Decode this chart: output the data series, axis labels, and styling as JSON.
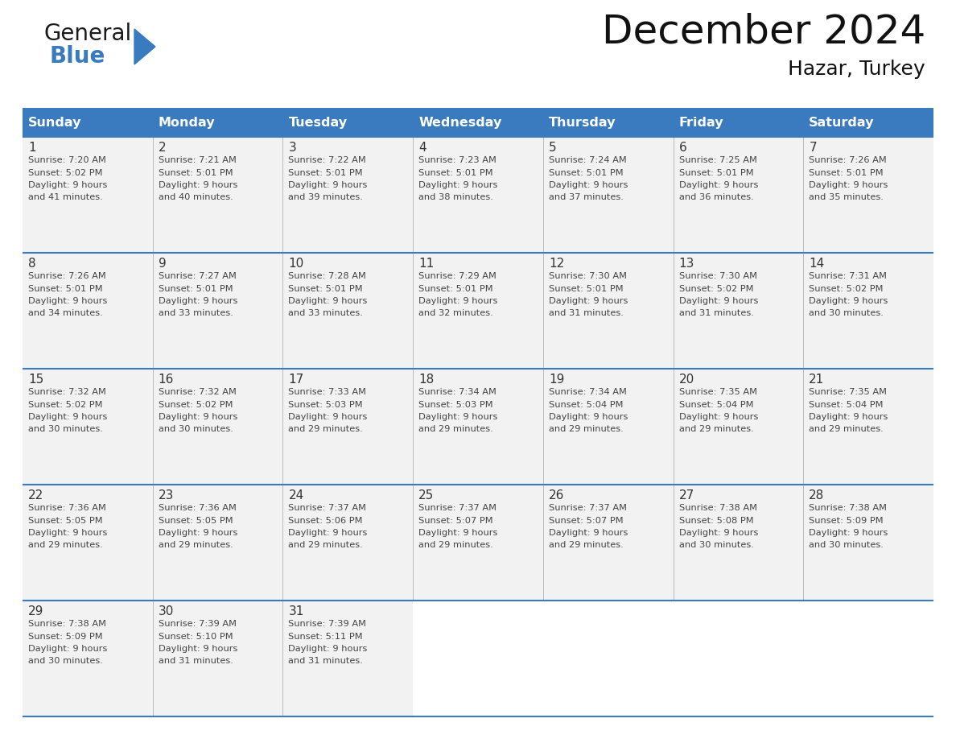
{
  "title": "December 2024",
  "subtitle": "Hazar, Turkey",
  "header_color": "#3a7abf",
  "header_text_color": "#ffffff",
  "background_color": "#ffffff",
  "cell_bg_odd": "#f2f2f2",
  "cell_bg_even": "#f2f2f2",
  "days_of_week": [
    "Sunday",
    "Monday",
    "Tuesday",
    "Wednesday",
    "Thursday",
    "Friday",
    "Saturday"
  ],
  "weeks": [
    [
      {
        "day": 1,
        "sunrise": "7:20 AM",
        "sunset": "5:02 PM",
        "daylight": "9 hours and 41 minutes."
      },
      {
        "day": 2,
        "sunrise": "7:21 AM",
        "sunset": "5:01 PM",
        "daylight": "9 hours and 40 minutes."
      },
      {
        "day": 3,
        "sunrise": "7:22 AM",
        "sunset": "5:01 PM",
        "daylight": "9 hours and 39 minutes."
      },
      {
        "day": 4,
        "sunrise": "7:23 AM",
        "sunset": "5:01 PM",
        "daylight": "9 hours and 38 minutes."
      },
      {
        "day": 5,
        "sunrise": "7:24 AM",
        "sunset": "5:01 PM",
        "daylight": "9 hours and 37 minutes."
      },
      {
        "day": 6,
        "sunrise": "7:25 AM",
        "sunset": "5:01 PM",
        "daylight": "9 hours and 36 minutes."
      },
      {
        "day": 7,
        "sunrise": "7:26 AM",
        "sunset": "5:01 PM",
        "daylight": "9 hours and 35 minutes."
      }
    ],
    [
      {
        "day": 8,
        "sunrise": "7:26 AM",
        "sunset": "5:01 PM",
        "daylight": "9 hours and 34 minutes."
      },
      {
        "day": 9,
        "sunrise": "7:27 AM",
        "sunset": "5:01 PM",
        "daylight": "9 hours and 33 minutes."
      },
      {
        "day": 10,
        "sunrise": "7:28 AM",
        "sunset": "5:01 PM",
        "daylight": "9 hours and 33 minutes."
      },
      {
        "day": 11,
        "sunrise": "7:29 AM",
        "sunset": "5:01 PM",
        "daylight": "9 hours and 32 minutes."
      },
      {
        "day": 12,
        "sunrise": "7:30 AM",
        "sunset": "5:01 PM",
        "daylight": "9 hours and 31 minutes."
      },
      {
        "day": 13,
        "sunrise": "7:30 AM",
        "sunset": "5:02 PM",
        "daylight": "9 hours and 31 minutes."
      },
      {
        "day": 14,
        "sunrise": "7:31 AM",
        "sunset": "5:02 PM",
        "daylight": "9 hours and 30 minutes."
      }
    ],
    [
      {
        "day": 15,
        "sunrise": "7:32 AM",
        "sunset": "5:02 PM",
        "daylight": "9 hours and 30 minutes."
      },
      {
        "day": 16,
        "sunrise": "7:32 AM",
        "sunset": "5:02 PM",
        "daylight": "9 hours and 30 minutes."
      },
      {
        "day": 17,
        "sunrise": "7:33 AM",
        "sunset": "5:03 PM",
        "daylight": "9 hours and 29 minutes."
      },
      {
        "day": 18,
        "sunrise": "7:34 AM",
        "sunset": "5:03 PM",
        "daylight": "9 hours and 29 minutes."
      },
      {
        "day": 19,
        "sunrise": "7:34 AM",
        "sunset": "5:04 PM",
        "daylight": "9 hours and 29 minutes."
      },
      {
        "day": 20,
        "sunrise": "7:35 AM",
        "sunset": "5:04 PM",
        "daylight": "9 hours and 29 minutes."
      },
      {
        "day": 21,
        "sunrise": "7:35 AM",
        "sunset": "5:04 PM",
        "daylight": "9 hours and 29 minutes."
      }
    ],
    [
      {
        "day": 22,
        "sunrise": "7:36 AM",
        "sunset": "5:05 PM",
        "daylight": "9 hours and 29 minutes."
      },
      {
        "day": 23,
        "sunrise": "7:36 AM",
        "sunset": "5:05 PM",
        "daylight": "9 hours and 29 minutes."
      },
      {
        "day": 24,
        "sunrise": "7:37 AM",
        "sunset": "5:06 PM",
        "daylight": "9 hours and 29 minutes."
      },
      {
        "day": 25,
        "sunrise": "7:37 AM",
        "sunset": "5:07 PM",
        "daylight": "9 hours and 29 minutes."
      },
      {
        "day": 26,
        "sunrise": "7:37 AM",
        "sunset": "5:07 PM",
        "daylight": "9 hours and 29 minutes."
      },
      {
        "day": 27,
        "sunrise": "7:38 AM",
        "sunset": "5:08 PM",
        "daylight": "9 hours and 30 minutes."
      },
      {
        "day": 28,
        "sunrise": "7:38 AM",
        "sunset": "5:09 PM",
        "daylight": "9 hours and 30 minutes."
      }
    ],
    [
      {
        "day": 29,
        "sunrise": "7:38 AM",
        "sunset": "5:09 PM",
        "daylight": "9 hours and 30 minutes."
      },
      {
        "day": 30,
        "sunrise": "7:39 AM",
        "sunset": "5:10 PM",
        "daylight": "9 hours and 31 minutes."
      },
      {
        "day": 31,
        "sunrise": "7:39 AM",
        "sunset": "5:11 PM",
        "daylight": "9 hours and 31 minutes."
      },
      null,
      null,
      null,
      null
    ]
  ],
  "logo_general_color": "#1a1a1a",
  "logo_blue_color": "#3a7abf",
  "divider_color": "#3a7abf",
  "cell_text_color": "#444444",
  "day_number_color": "#333333",
  "title_fontsize": 36,
  "subtitle_fontsize": 18,
  "header_fontsize": 11.5,
  "day_num_fontsize": 11,
  "cell_text_fontsize": 8.2
}
